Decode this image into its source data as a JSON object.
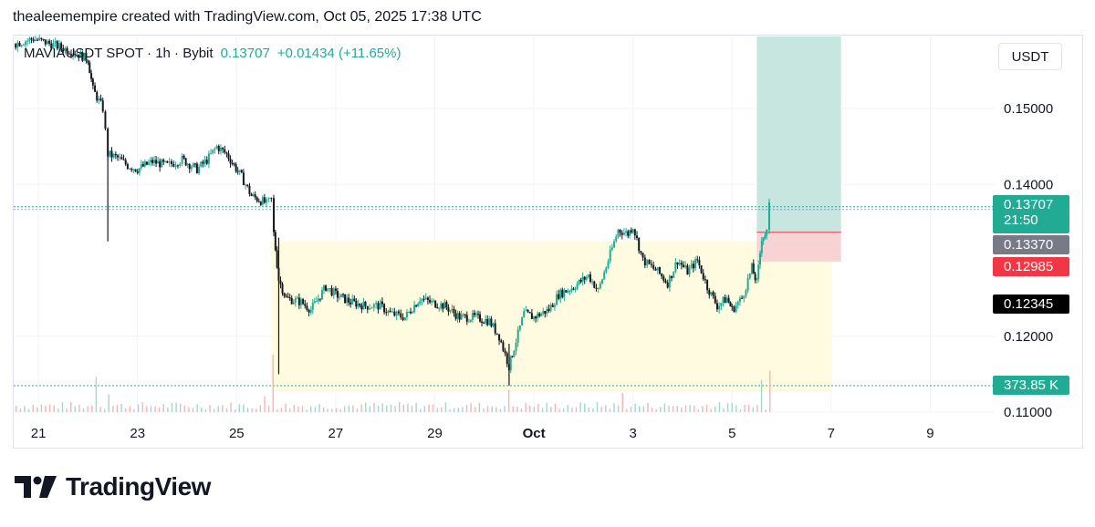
{
  "header": {
    "attribution": "thealeemempire created with TradingView.com, Oct 05, 2025 17:38 UTC"
  },
  "legend": {
    "symbol": "MAVIAUSDT SPOT · 1h · Bybit",
    "price": "0.13707",
    "change": "+0.01434 (+11.65%)"
  },
  "currency_button": "USDT",
  "price_tags": {
    "last": "0.13707",
    "countdown": "21:50",
    "entry": "0.13370",
    "stop": "0.12985",
    "level": "0.12345",
    "volume": "373.85 K"
  },
  "brand": {
    "name": "TradingView"
  },
  "colors": {
    "up": "#22ab94",
    "down": "#131722",
    "target_zone": "#c8e6e0",
    "stop_zone": "#f7d3d3",
    "range_zone": "#fffbe0",
    "stop_tag": "#f23645",
    "entry_tag": "#787b86",
    "level_tag": "#000000"
  },
  "chart_data": {
    "type": "candlestick",
    "timeframe": "1h",
    "x_ticks": [
      {
        "label": "21",
        "day": 21
      },
      {
        "label": "23",
        "day": 23
      },
      {
        "label": "25",
        "day": 25
      },
      {
        "label": "27",
        "day": 27
      },
      {
        "label": "29",
        "day": 29
      },
      {
        "label": "Oct",
        "day": 31
      },
      {
        "label": "3",
        "day": 33
      },
      {
        "label": "5",
        "day": 35
      },
      {
        "label": "7",
        "day": 37
      },
      {
        "label": "9",
        "day": 39
      }
    ],
    "y_ticks": [
      "0.15000",
      "0.14000",
      "0.12000",
      "0.11000"
    ],
    "ylim": [
      0.11,
      0.1595
    ],
    "xlim_days": [
      20.5,
      40.3
    ],
    "price_path": [
      [
        20.5,
        0.1585
      ],
      [
        20.9,
        0.1592
      ],
      [
        21.3,
        0.1584
      ],
      [
        21.7,
        0.1575
      ],
      [
        22.0,
        0.1565
      ],
      [
        22.1,
        0.1525
      ],
      [
        22.3,
        0.15
      ],
      [
        22.4,
        0.144
      ],
      [
        22.6,
        0.1435
      ],
      [
        22.8,
        0.1425
      ],
      [
        23.0,
        0.142
      ],
      [
        23.3,
        0.143
      ],
      [
        23.6,
        0.1425
      ],
      [
        23.9,
        0.1433
      ],
      [
        24.2,
        0.142
      ],
      [
        24.4,
        0.1432
      ],
      [
        24.6,
        0.145
      ],
      [
        24.8,
        0.144
      ],
      [
        25.1,
        0.141
      ],
      [
        25.3,
        0.1385
      ],
      [
        25.6,
        0.1375
      ],
      [
        25.7,
        0.138
      ],
      [
        25.75,
        0.1335
      ],
      [
        25.85,
        0.1275
      ],
      [
        26.0,
        0.125
      ],
      [
        26.3,
        0.1245
      ],
      [
        26.5,
        0.1235
      ],
      [
        26.8,
        0.1265
      ],
      [
        27.0,
        0.1255
      ],
      [
        27.3,
        0.1245
      ],
      [
        27.6,
        0.124
      ],
      [
        27.9,
        0.124
      ],
      [
        28.1,
        0.123
      ],
      [
        28.4,
        0.1225
      ],
      [
        28.7,
        0.125
      ],
      [
        28.9,
        0.1245
      ],
      [
        29.2,
        0.124
      ],
      [
        29.5,
        0.1225
      ],
      [
        29.8,
        0.1225
      ],
      [
        30.1,
        0.122
      ],
      [
        30.3,
        0.12
      ],
      [
        30.5,
        0.116
      ],
      [
        30.6,
        0.1185
      ],
      [
        30.8,
        0.123
      ],
      [
        31.0,
        0.1225
      ],
      [
        31.3,
        0.1235
      ],
      [
        31.5,
        0.1255
      ],
      [
        31.8,
        0.1265
      ],
      [
        32.1,
        0.128
      ],
      [
        32.3,
        0.126
      ],
      [
        32.5,
        0.13
      ],
      [
        32.7,
        0.134
      ],
      [
        32.9,
        0.1335
      ],
      [
        33.0,
        0.1345
      ],
      [
        33.2,
        0.13
      ],
      [
        33.5,
        0.1285
      ],
      [
        33.7,
        0.127
      ],
      [
        33.9,
        0.13
      ],
      [
        34.1,
        0.1285
      ],
      [
        34.3,
        0.13
      ],
      [
        34.5,
        0.1265
      ],
      [
        34.7,
        0.124
      ],
      [
        34.9,
        0.125
      ],
      [
        35.0,
        0.1235
      ],
      [
        35.2,
        0.125
      ],
      [
        35.4,
        0.129
      ],
      [
        35.5,
        0.127
      ],
      [
        35.6,
        0.133
      ],
      [
        35.7,
        0.1337
      ],
      [
        35.75,
        0.1371
      ]
    ],
    "volume": [
      {
        "x": 22.2,
        "v": 0.55
      },
      {
        "x": 22.4,
        "v": 0.28
      },
      {
        "x": 25.6,
        "v": 0.25
      },
      {
        "x": 25.75,
        "v": 0.9
      },
      {
        "x": 30.5,
        "v": 0.35
      },
      {
        "x": 32.8,
        "v": 0.3
      },
      {
        "x": 35.6,
        "v": 0.5
      },
      {
        "x": 35.75,
        "v": 0.65
      }
    ],
    "levels": {
      "last_price": 0.13707,
      "entry": 0.1337,
      "stop": 0.12985,
      "support": 0.12345,
      "range_top": 0.1325,
      "target_top": 0.1595
    },
    "range_box_days": [
      25.7,
      37.0
    ],
    "position_box_days": [
      35.5,
      37.2
    ]
  }
}
